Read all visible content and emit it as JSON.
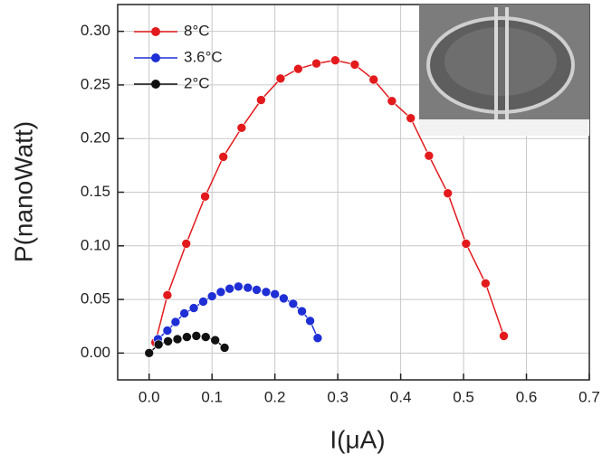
{
  "chart_data": {
    "type": "line",
    "xlabel": "I(μA)",
    "ylabel": "P(nanoWatt)",
    "xlim": [
      -0.05,
      0.7
    ],
    "ylim": [
      -0.025,
      0.325
    ],
    "xticks": [
      {
        "value": 0,
        "label": "0.0"
      },
      0.1,
      0.2,
      0.3,
      0.4,
      0.5,
      0.6,
      0.7
    ],
    "yticks": [
      {
        "value": 0,
        "label": "0.00"
      },
      0.05,
      {
        "value": 0.1,
        "label": "0.10"
      },
      0.15,
      {
        "value": 0.2,
        "label": "0.20"
      },
      0.25,
      {
        "value": 0.3,
        "label": "0.30"
      }
    ],
    "grid": true,
    "legend": "upper left",
    "series": [
      {
        "name": "8°C",
        "color": "#e31a1c",
        "x": [
          0.01,
          0.029,
          0.059,
          0.089,
          0.118,
          0.147,
          0.178,
          0.209,
          0.237,
          0.266,
          0.296,
          0.327,
          0.357,
          0.386,
          0.416,
          0.445,
          0.475,
          0.504,
          0.535,
          0.564
        ],
        "values": [
          0.01,
          0.054,
          0.102,
          0.146,
          0.183,
          0.21,
          0.236,
          0.256,
          0.265,
          0.27,
          0.273,
          0.269,
          0.255,
          0.235,
          0.219,
          0.184,
          0.149,
          0.102,
          0.065,
          0.016
        ]
      },
      {
        "name": "3.6°C",
        "color": "#1f2fd6",
        "x": [
          0.014,
          0.029,
          0.042,
          0.056,
          0.071,
          0.086,
          0.1,
          0.114,
          0.128,
          0.142,
          0.157,
          0.171,
          0.186,
          0.2,
          0.214,
          0.229,
          0.243,
          0.256,
          0.268
        ],
        "values": [
          0.013,
          0.021,
          0.029,
          0.037,
          0.042,
          0.048,
          0.053,
          0.057,
          0.06,
          0.062,
          0.061,
          0.059,
          0.057,
          0.055,
          0.051,
          0.046,
          0.039,
          0.03,
          0.014
        ]
      },
      {
        "name": "2°C",
        "color": "#111111",
        "x": [
          0,
          0.015,
          0.03,
          0.045,
          0.06,
          0.075,
          0.09,
          0.105,
          0.12
        ],
        "values": [
          0,
          0.008,
          0.011,
          0.013,
          0.015,
          0.016,
          0.015,
          0.012,
          0.005
        ]
      }
    ]
  }
}
